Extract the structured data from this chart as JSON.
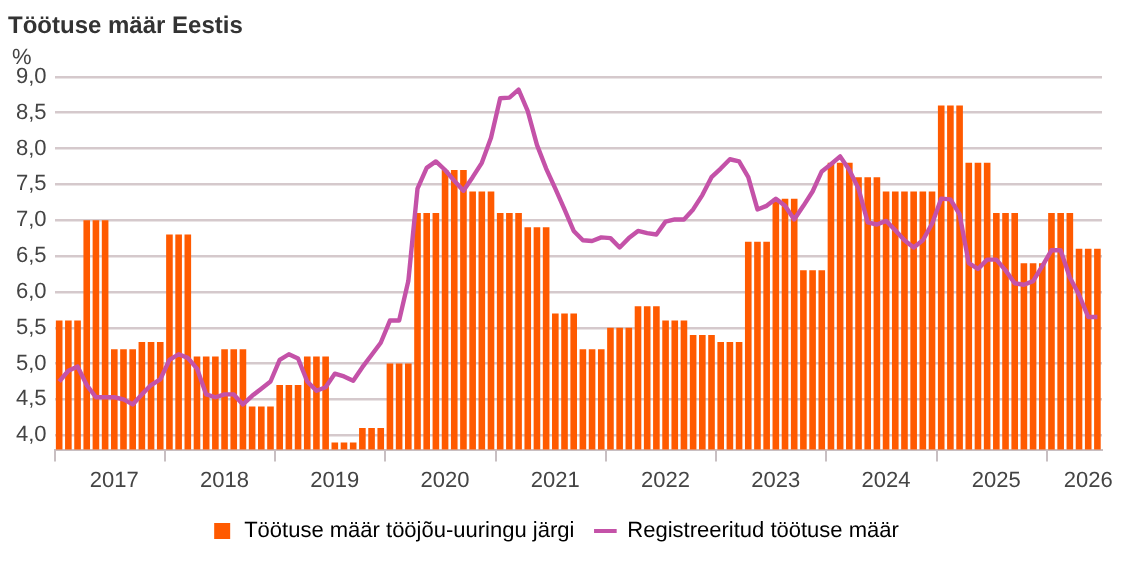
{
  "chart_data": {
    "type": "bar",
    "title": "Töötuse määr Eestis",
    "ylabel": "%",
    "categories": [
      null,
      null,
      null,
      null,
      null,
      null,
      "2017",
      null,
      null,
      null,
      null,
      null,
      null,
      null,
      null,
      null,
      null,
      null,
      "2018",
      null,
      null,
      null,
      null,
      null,
      null,
      null,
      null,
      null,
      null,
      null,
      "2019",
      null,
      null,
      null,
      null,
      null,
      null,
      null,
      null,
      null,
      null,
      null,
      "2020",
      null,
      null,
      null,
      null,
      null,
      null,
      null,
      null,
      null,
      null,
      null,
      "2021",
      null,
      null,
      null,
      null,
      null,
      null,
      null,
      null,
      null,
      null,
      null,
      "2022",
      null,
      null,
      null,
      null,
      null,
      null,
      null,
      null,
      null,
      null,
      null,
      "2023",
      null,
      null,
      null,
      null,
      null,
      null,
      null,
      null,
      null,
      null,
      null,
      "2024",
      null,
      null,
      null,
      null,
      null,
      null,
      null,
      null,
      null,
      null,
      null,
      "2025",
      null,
      null,
      null,
      null,
      null,
      null,
      null,
      null,
      null,
      "2026",
      null
    ],
    "series": [
      {
        "name": "Töötuse määr tööjõu-uuringu järgi",
        "color": "#ff5a00",
        "values": [
          5.6,
          5.6,
          5.6,
          7.0,
          7.0,
          7.0,
          5.2,
          5.2,
          5.2,
          5.3,
          5.3,
          5.3,
          6.8,
          6.8,
          6.8,
          5.1,
          5.1,
          5.1,
          5.2,
          5.2,
          5.2,
          4.4,
          4.4,
          4.4,
          4.7,
          4.7,
          4.7,
          5.1,
          5.1,
          5.1,
          3.9,
          3.9,
          3.9,
          4.1,
          4.1,
          4.1,
          5.0,
          5.0,
          5.0,
          7.1,
          7.1,
          7.1,
          7.7,
          7.7,
          7.7,
          7.4,
          7.4,
          7.4,
          7.1,
          7.1,
          7.1,
          6.9,
          6.9,
          6.9,
          5.7,
          5.7,
          5.7,
          5.2,
          5.2,
          5.2,
          5.5,
          5.5,
          5.5,
          5.8,
          5.8,
          5.8,
          5.6,
          5.6,
          5.6,
          5.4,
          5.4,
          5.4,
          5.3,
          5.3,
          5.3,
          6.7,
          6.7,
          6.7,
          7.3,
          7.3,
          7.3,
          6.3,
          6.3,
          6.3,
          7.8,
          7.8,
          7.8,
          7.6,
          7.6,
          7.6,
          7.4,
          7.4,
          7.4,
          7.4,
          7.4,
          7.4,
          8.6,
          8.6,
          8.6,
          7.8,
          7.8,
          7.8,
          7.1,
          7.1,
          7.1,
          6.4,
          6.4,
          6.4,
          7.1,
          7.1,
          7.1,
          6.6,
          6.6,
          6.6
        ]
      },
      {
        "name": "Registreeritud töötuse määr",
        "type": "line",
        "color": "#c452a8",
        "values": [
          4.75,
          4.9,
          4.96,
          4.7,
          4.53,
          4.53,
          4.53,
          4.5,
          4.43,
          4.57,
          4.7,
          4.78,
          5.05,
          5.13,
          5.08,
          4.93,
          4.57,
          4.53,
          4.57,
          4.57,
          4.43,
          4.55,
          4.65,
          4.75,
          5.05,
          5.13,
          5.07,
          4.75,
          4.62,
          4.67,
          4.86,
          4.82,
          4.76,
          4.95,
          5.12,
          5.29,
          5.6,
          5.6,
          6.15,
          7.44,
          7.73,
          7.82,
          7.7,
          7.55,
          7.41,
          7.6,
          7.8,
          8.15,
          8.7,
          8.71,
          8.82,
          8.52,
          8.05,
          7.72,
          7.44,
          7.15,
          6.85,
          6.72,
          6.71,
          6.76,
          6.75,
          6.62,
          6.75,
          6.85,
          6.82,
          6.8,
          6.98,
          7.01,
          7.01,
          7.15,
          7.35,
          7.6,
          7.72,
          7.85,
          7.82,
          7.6,
          7.15,
          7.2,
          7.3,
          7.2,
          7.01,
          7.2,
          7.4,
          7.68,
          7.78,
          7.89,
          7.7,
          7.44,
          6.97,
          6.94,
          6.99,
          6.86,
          6.72,
          6.62,
          6.72,
          6.95,
          7.3,
          7.29,
          7.08,
          6.4,
          6.32,
          6.45,
          6.45,
          6.3,
          6.12,
          6.1,
          6.15,
          6.36,
          6.58,
          6.58,
          6.2,
          5.96,
          5.65,
          5.65
        ]
      }
    ],
    "ylim": [
      3.8,
      9.0
    ],
    "yticks": [
      {
        "value": 4.0,
        "label": "4,0"
      },
      {
        "value": 4.5,
        "label": "4,5"
      },
      {
        "value": 5.0,
        "label": "5,0"
      },
      {
        "value": 5.5,
        "label": "5,5"
      },
      {
        "value": 6.0,
        "label": "6,0"
      },
      {
        "value": 6.5,
        "label": "6,5"
      },
      {
        "value": 7.0,
        "label": "7,0"
      },
      {
        "value": 7.5,
        "label": "7,5"
      },
      {
        "value": 8.0,
        "label": "8,0"
      },
      {
        "value": 8.5,
        "label": "8,5"
      },
      {
        "value": 9.0,
        "label": "9,0"
      }
    ],
    "grid": "y",
    "legend": "bottom",
    "marker": "none",
    "line_style": "solid"
  }
}
